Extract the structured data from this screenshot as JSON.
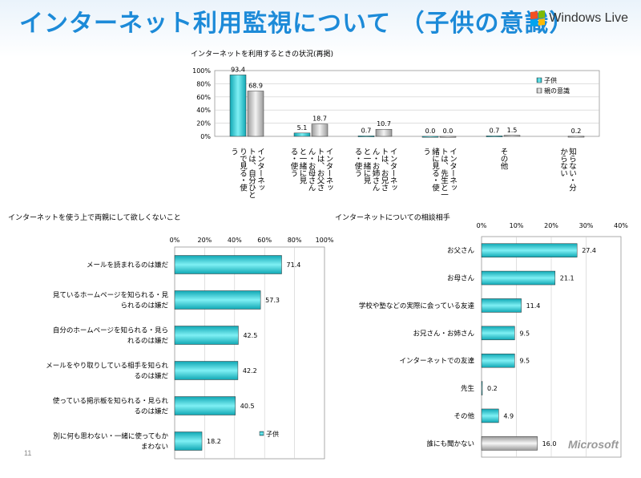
{
  "slide": {
    "title": "インターネット利用監視について （子供の意識）",
    "logo_text": "Windows Live",
    "footer_logo": "Microsoft",
    "slide_number": "11"
  },
  "chart_data": [
    {
      "type": "bar",
      "title": "インターネットを利用するときの状況(再掲)",
      "categories": [
        "インターネットは、自分ひとりで見る・使う",
        "インターネットは、お父さん・お母さんと一緒に見る・使う",
        "インターネットは、お兄さん・お姉さんと一緒に見る・使う",
        "インターネットは、先生と一緒に見る・使う",
        "その他",
        "知らない・分からない"
      ],
      "category_labels": [
        [
          "インターネッ",
          "トは、自分ひと",
          "りで見る・使",
          "う"
        ],
        [
          "インターネッ",
          "トは、お父さ",
          "ん・お母さん",
          "と一緒に見",
          "る・使う"
        ],
        [
          "インターネッ",
          "トは、お兄さ",
          "ん・お姉さん",
          "と一緒に見",
          "る・使う"
        ],
        [
          "インターネッ",
          "トは、先生と一",
          "緒に見る・使",
          "う"
        ],
        [
          "その他"
        ],
        [
          "知らない・分",
          "からない"
        ]
      ],
      "series": [
        {
          "name": "子供",
          "values": [
            93.4,
            5.1,
            0.7,
            0.0,
            0.7,
            null
          ],
          "labels": [
            "93.4",
            "5.1",
            "0.7",
            "0.0",
            "0.7",
            ""
          ]
        },
        {
          "name": "親の意識",
          "values": [
            68.9,
            18.7,
            10.7,
            0.0,
            1.5,
            0.2
          ],
          "labels": [
            "68.9",
            "18.7",
            "10.7",
            "0.0",
            "1.5",
            "0.2"
          ]
        }
      ],
      "yticks": [
        "0%",
        "20%",
        "40%",
        "60%",
        "80%",
        "100%"
      ],
      "ylim": [
        0,
        100
      ],
      "legend": "top-right",
      "colors": {
        "子供": "#22c8d2",
        "親の意識": "#c8c8c8"
      }
    },
    {
      "type": "bar",
      "orientation": "horizontal",
      "title": "インターネットを使う上で両親にして欲しくないこと",
      "categories": [
        "メールを読まれるのは嫌だ",
        "見ているホームページを知られる・見られるのは嫌だ",
        "自分のホームページを知られる・見られるのは嫌だ",
        "メールをやり取りしている相手を知られるのは嫌だ",
        "使っている掲示板を知られる・見られるのは嫌だ",
        "別に何も思わない・一緒に使ってもかまわない"
      ],
      "category_labels": [
        [
          "メールを読まれるのは嫌だ"
        ],
        [
          "見ているホームページを知られる・見",
          "られるのは嫌だ"
        ],
        [
          "自分のホームページを知られる・見ら",
          "れるのは嫌だ"
        ],
        [
          "メールをやり取りしている相手を知られ",
          "るのは嫌だ"
        ],
        [
          "使っている掲示板を知られる・見られ",
          "るのは嫌だ"
        ],
        [
          "別に何も思わない・一緒に使ってもか",
          "まわない"
        ]
      ],
      "values": [
        71.4,
        57.3,
        42.5,
        42.2,
        40.5,
        18.2
      ],
      "labels": [
        "71.4",
        "57.3",
        "42.5",
        "42.2",
        "40.5",
        "18.2"
      ],
      "xticks": [
        "0%",
        "20%",
        "40%",
        "60%",
        "80%",
        "100%"
      ],
      "xlim": [
        0,
        100
      ],
      "series_name": "子供",
      "legend": "bottom-right",
      "color": "#22c8d2"
    },
    {
      "type": "bar",
      "orientation": "horizontal",
      "title": "インターネットについての相談相手",
      "categories": [
        "お父さん",
        "お母さん",
        "学校や塾などの実際に会っている友達",
        "お兄さん・お姉さん",
        "インターネットでの友達",
        "先生",
        "その他",
        "誰にも聞かない"
      ],
      "values": [
        27.4,
        21.1,
        11.4,
        9.5,
        9.5,
        0.2,
        4.9,
        16.0
      ],
      "labels": [
        "27.4",
        "21.1",
        "11.4",
        "9.5",
        "9.5",
        "0.2",
        "4.9",
        "16.0"
      ],
      "highlight_index": 7,
      "xticks": [
        "0%",
        "10%",
        "20%",
        "30%",
        "40%"
      ],
      "xlim": [
        0,
        40
      ],
      "colors": {
        "default": "#22c8d2",
        "highlight": "#c8c8c8"
      }
    }
  ]
}
